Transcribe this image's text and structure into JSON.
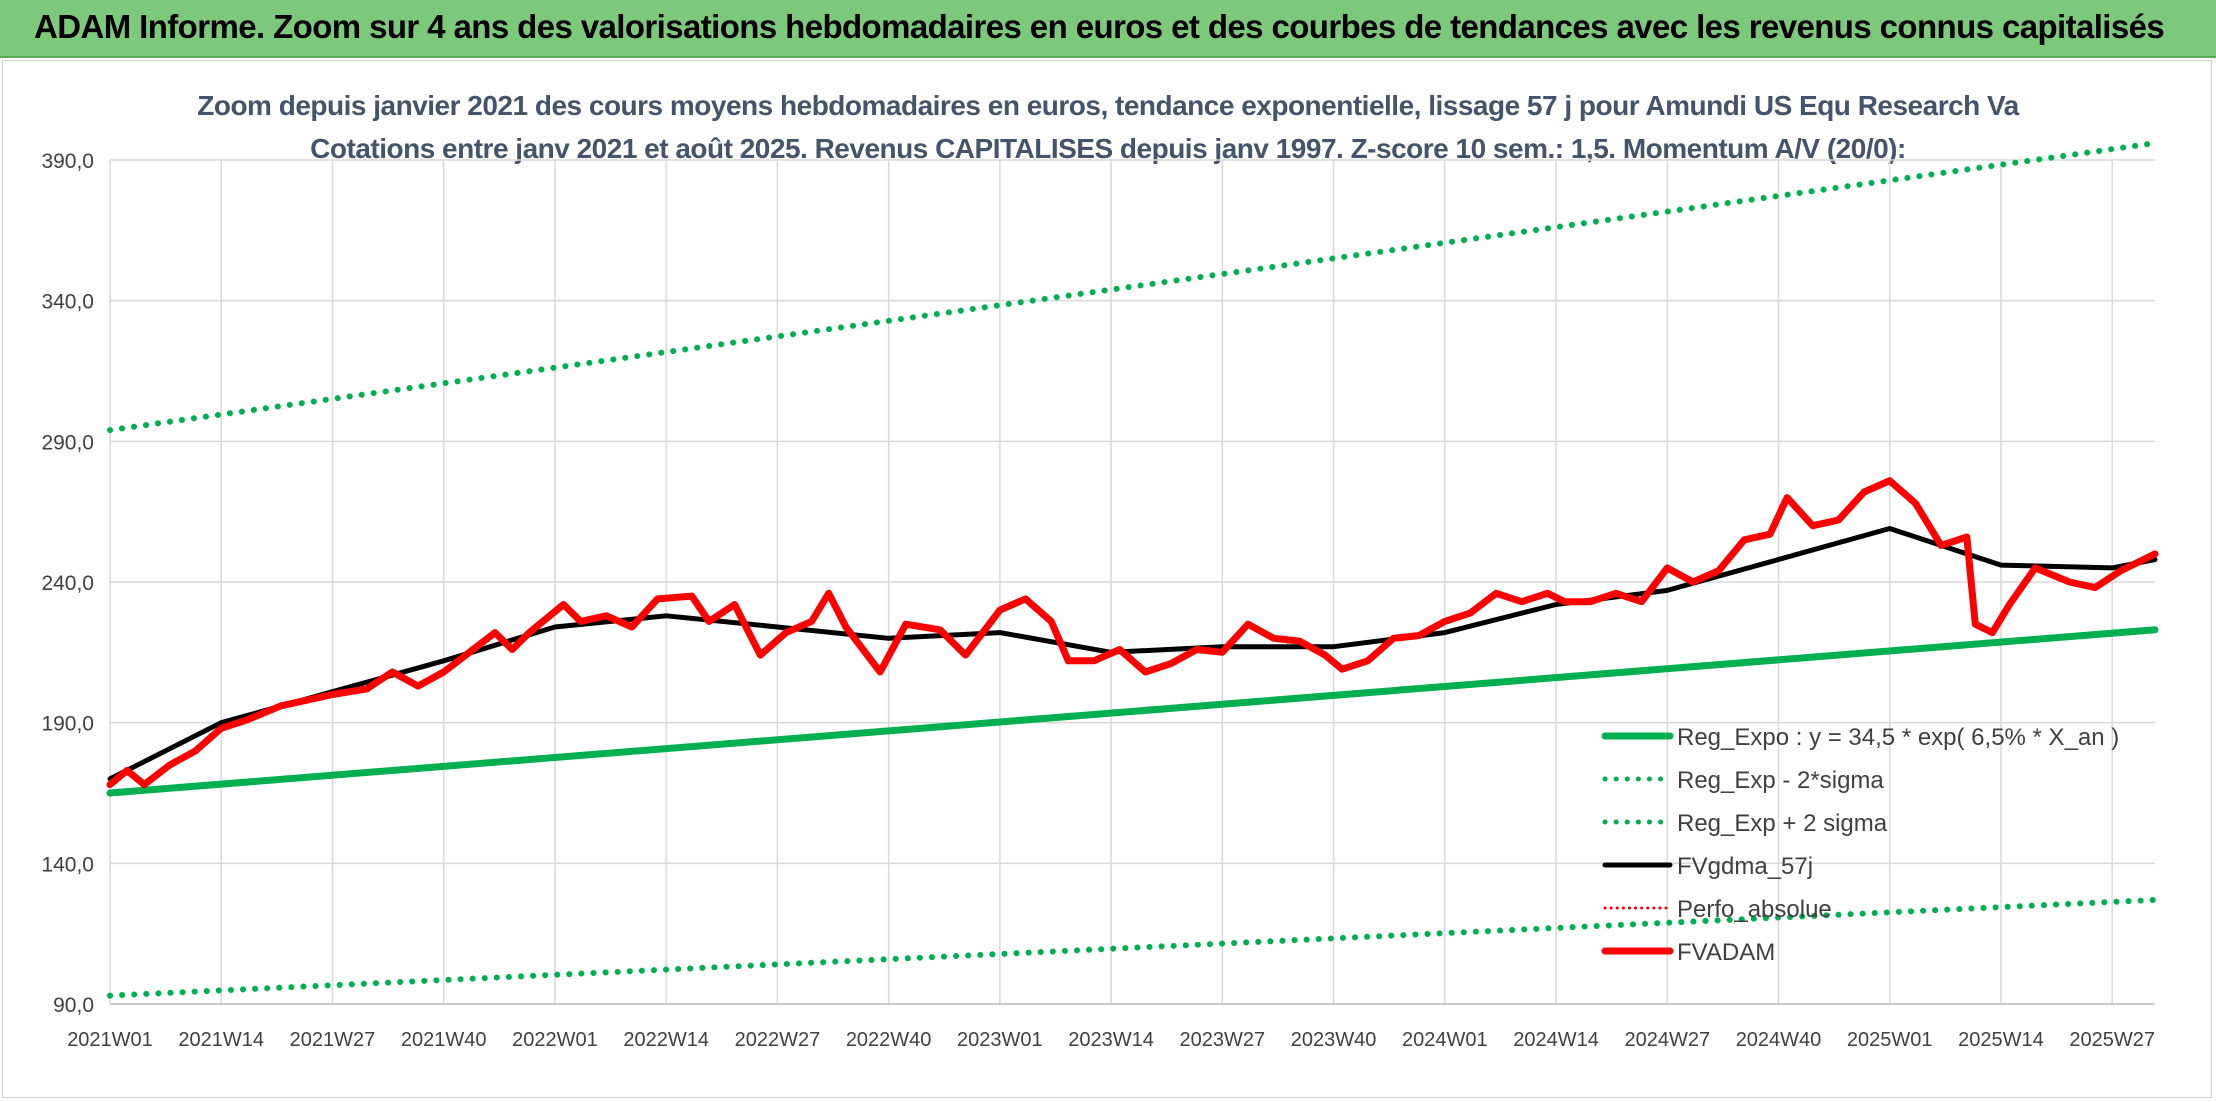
{
  "banner": {
    "title": "ADAM Informe. Zoom sur 4 ans des valorisations hebdomadaires en euros et des courbes de tendances avec les revenus connus capitalisés"
  },
  "chart_data": {
    "type": "line",
    "title_line1": "Zoom depuis janvier 2021 des cours moyens hebdomadaires en euros, tendance exponentielle, lissage 57 j pour Amundi US Equ Research Va",
    "title_line2": "Cotations entre janv 2021 et août 2025. Revenus CAPITALISES depuis janv 1997. Z-score 10 sem.: 1,5. Momentum A/V (20/0):",
    "xlabel": "",
    "ylabel": "",
    "ylim": [
      90,
      390
    ],
    "yticks": [
      "390,0",
      "340,0",
      "290,0",
      "240,0",
      "190,0",
      "140,0",
      "90,0"
    ],
    "ytick_values": [
      390,
      340,
      290,
      240,
      190,
      140,
      90
    ],
    "xticks": [
      "2021W01",
      "2021W14",
      "2021W27",
      "2021W40",
      "2022W01",
      "2022W14",
      "2022W27",
      "2022W40",
      "2023W01",
      "2023W14",
      "2023W27",
      "2023W40",
      "2024W01",
      "2024W14",
      "2024W27",
      "2024W40",
      "2025W01",
      "2025W14",
      "2025W27"
    ],
    "x_range_weeks": [
      0,
      239
    ],
    "grid": true,
    "legend_position": "bottom-right",
    "series": [
      {
        "name": "Reg_Expo : y = 34,5 * exp( 6,5% *  X_an )",
        "color": "#00b050",
        "style": "solid",
        "x": [
          0,
          239
        ],
        "y": [
          165,
          223
        ]
      },
      {
        "name": "Reg_Exp - 2*sigma",
        "color": "#00b050",
        "style": "dotted",
        "x": [
          0,
          239
        ],
        "y": [
          93,
          127
        ]
      },
      {
        "name": "Reg_Exp + 2 sigma",
        "color": "#00b050",
        "style": "dotted",
        "x": [
          0,
          239
        ],
        "y": [
          294,
          396
        ]
      },
      {
        "name": "FVgdma_57j",
        "color": "#000000",
        "style": "solid",
        "x": [
          0,
          13,
          26,
          39,
          52,
          65,
          78,
          91,
          104,
          117,
          130,
          143,
          156,
          169,
          182,
          195,
          208,
          221,
          234,
          239
        ],
        "y": [
          170,
          190,
          201,
          212,
          224,
          228,
          224,
          220,
          222,
          215,
          217,
          217,
          222,
          232,
          237,
          248,
          259,
          246,
          245,
          248
        ]
      },
      {
        "name": "Perfo_absolue",
        "color": "#ff0000",
        "style": "dotted",
        "x": [],
        "y": []
      },
      {
        "name": "FVADAM",
        "color": "#ff0000",
        "style": "solid",
        "x": [
          0,
          2,
          4,
          7,
          10,
          13,
          16,
          20,
          23,
          26,
          30,
          33,
          36,
          39,
          42,
          45,
          47,
          49,
          53,
          55,
          58,
          61,
          64,
          68,
          70,
          73,
          76,
          79,
          82,
          84,
          86,
          90,
          93,
          97,
          100,
          104,
          107,
          110,
          112,
          115,
          118,
          121,
          124,
          127,
          130,
          133,
          136,
          139,
          142,
          144,
          147,
          150,
          153,
          156,
          159,
          162,
          165,
          168,
          170,
          173,
          176,
          179,
          182,
          185,
          188,
          191,
          194,
          196,
          199,
          202,
          205,
          208,
          211,
          214,
          217,
          218,
          220,
          222,
          225,
          229,
          232,
          235,
          239
        ],
        "y": [
          168,
          173,
          168,
          175,
          180,
          188,
          191,
          196,
          198,
          200,
          202,
          208,
          203,
          208,
          215,
          222,
          216,
          222,
          232,
          226,
          228,
          224,
          234,
          235,
          226,
          232,
          214,
          222,
          226,
          236,
          224,
          208,
          225,
          223,
          214,
          230,
          234,
          226,
          212,
          212,
          216,
          208,
          211,
          216,
          215,
          225,
          220,
          219,
          214,
          209,
          212,
          220,
          221,
          226,
          229,
          236,
          233,
          236,
          233,
          233,
          236,
          233,
          245,
          240,
          244,
          255,
          257,
          270,
          260,
          262,
          272,
          276,
          268,
          253,
          256,
          225,
          222,
          232,
          245,
          240,
          238,
          244,
          250
        ]
      }
    ]
  }
}
